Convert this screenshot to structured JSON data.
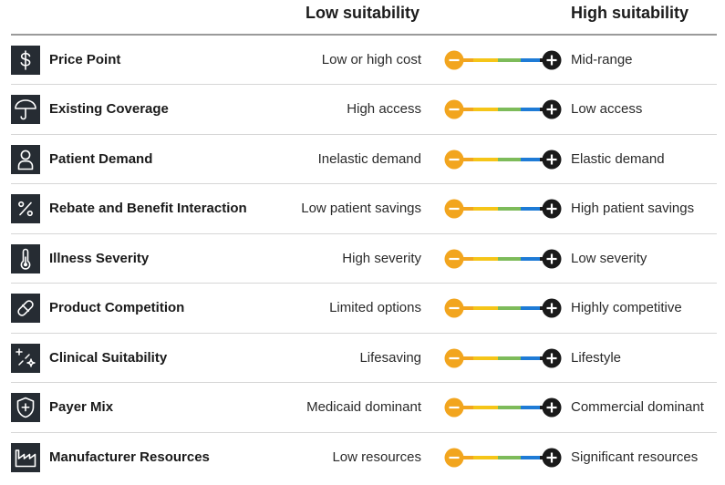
{
  "header": {
    "low_label": "Low suitability",
    "high_label": "High suitability"
  },
  "scale_colors": [
    "#f2a51e",
    "#f5c518",
    "#7dbb5a",
    "#1e7bd6",
    "#1a1a1a"
  ],
  "rows": [
    {
      "name": "Price Point",
      "icon": "dollar-icon",
      "low": "Low or high cost",
      "high": "Mid-range"
    },
    {
      "name": "Existing Coverage",
      "icon": "umbrella-icon",
      "low": "High access",
      "high": "Low access"
    },
    {
      "name": "Patient Demand",
      "icon": "person-icon",
      "low": "Inelastic demand",
      "high": "Elastic demand"
    },
    {
      "name": "Rebate and Benefit Interaction",
      "icon": "percent-icon",
      "low": "Low patient savings",
      "high": "High patient savings"
    },
    {
      "name": "Illness Severity",
      "icon": "thermometer-icon",
      "low": "High severity",
      "high": "Low severity"
    },
    {
      "name": "Product Competition",
      "icon": "pill-icon",
      "low": "Limited options",
      "high": "Highly competitive"
    },
    {
      "name": "Clinical Suitability",
      "icon": "sparkle-icon",
      "low": "Lifesaving",
      "high": "Lifestyle"
    },
    {
      "name": "Payer Mix",
      "icon": "shield-plus-icon",
      "low": "Medicaid dominant",
      "high": "Commercial dominant"
    },
    {
      "name": "Manufacturer Resources",
      "icon": "factory-icon",
      "low": "Low resources",
      "high": "Significant resources"
    }
  ]
}
